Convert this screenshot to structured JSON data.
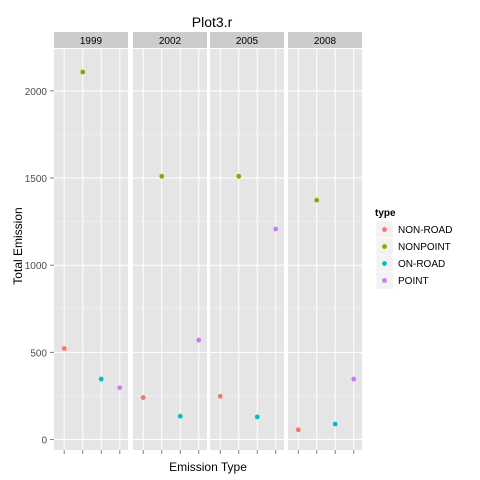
{
  "chart_data": {
    "type": "scatter",
    "title": "Plot3.r",
    "xlabel": "Emission Type",
    "ylabel": "Total Emission",
    "ylim": [
      -60,
      2240
    ],
    "yticks": [
      0,
      500,
      1000,
      1500,
      2000
    ],
    "grid": true,
    "facet_labels": [
      "1999",
      "2002",
      "2005",
      "2008"
    ],
    "legend": {
      "title": "type",
      "placement": "right",
      "entries": [
        {
          "label": "NON-ROAD",
          "color": "#F8766D"
        },
        {
          "label": "NONPOINT",
          "color": "#7CAE00"
        },
        {
          "label": "ON-ROAD",
          "color": "#00BFC4"
        },
        {
          "label": "POINT",
          "color": "#C77CFF"
        }
      ]
    },
    "categories": [
      "NON-ROAD",
      "NONPOINT",
      "ON-ROAD",
      "POINT"
    ],
    "panels": [
      {
        "facet": "1999",
        "values": [
          522,
          2108,
          347,
          297
        ]
      },
      {
        "facet": "2002",
        "values": [
          241,
          1510,
          134,
          570
        ]
      },
      {
        "facet": "2005",
        "values": [
          248,
          1510,
          130,
          1207
        ]
      },
      {
        "facet": "2008",
        "values": [
          56,
          1373,
          89,
          347
        ]
      }
    ]
  }
}
